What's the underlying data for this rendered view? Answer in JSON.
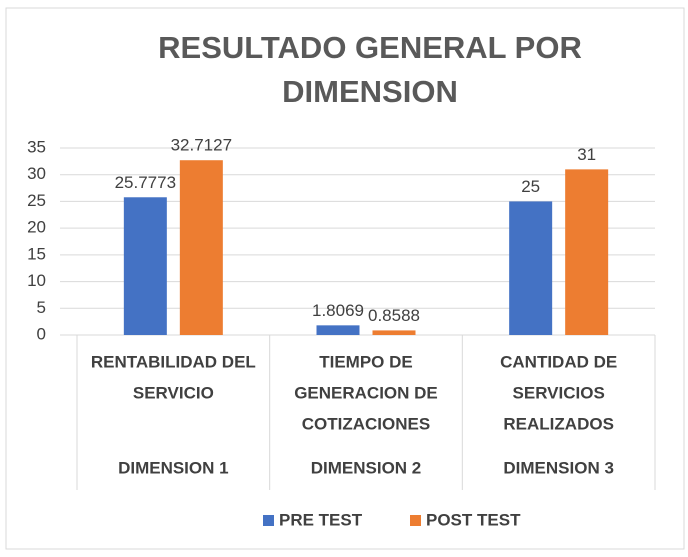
{
  "chart_data": {
    "type": "bar",
    "title": [
      "RESULTADO GENERAL POR",
      "DIMENSION"
    ],
    "categories": [
      [
        "RENTABILIDAD DEL",
        "SERVICIO"
      ],
      [
        "TIEMPO DE",
        "GENERACION DE",
        "COTIZACIONES"
      ],
      [
        "CANTIDAD DE",
        "SERVICIOS",
        "REALIZADOS"
      ]
    ],
    "groups": [
      "DIMENSION 1",
      "DIMENSION 2",
      "DIMENSION 3"
    ],
    "series": [
      {
        "name": "PRE TEST",
        "color": "#4472c4",
        "values": [
          25.7773,
          1.8069,
          25
        ]
      },
      {
        "name": "POST TEST",
        "color": "#ed7d31",
        "values": [
          32.7127,
          0.8588,
          31
        ]
      }
    ],
    "ylim": [
      0,
      35
    ],
    "yticks": [
      0,
      5,
      10,
      15,
      20,
      25,
      30,
      35
    ],
    "grid": true,
    "legend": "bottom"
  }
}
